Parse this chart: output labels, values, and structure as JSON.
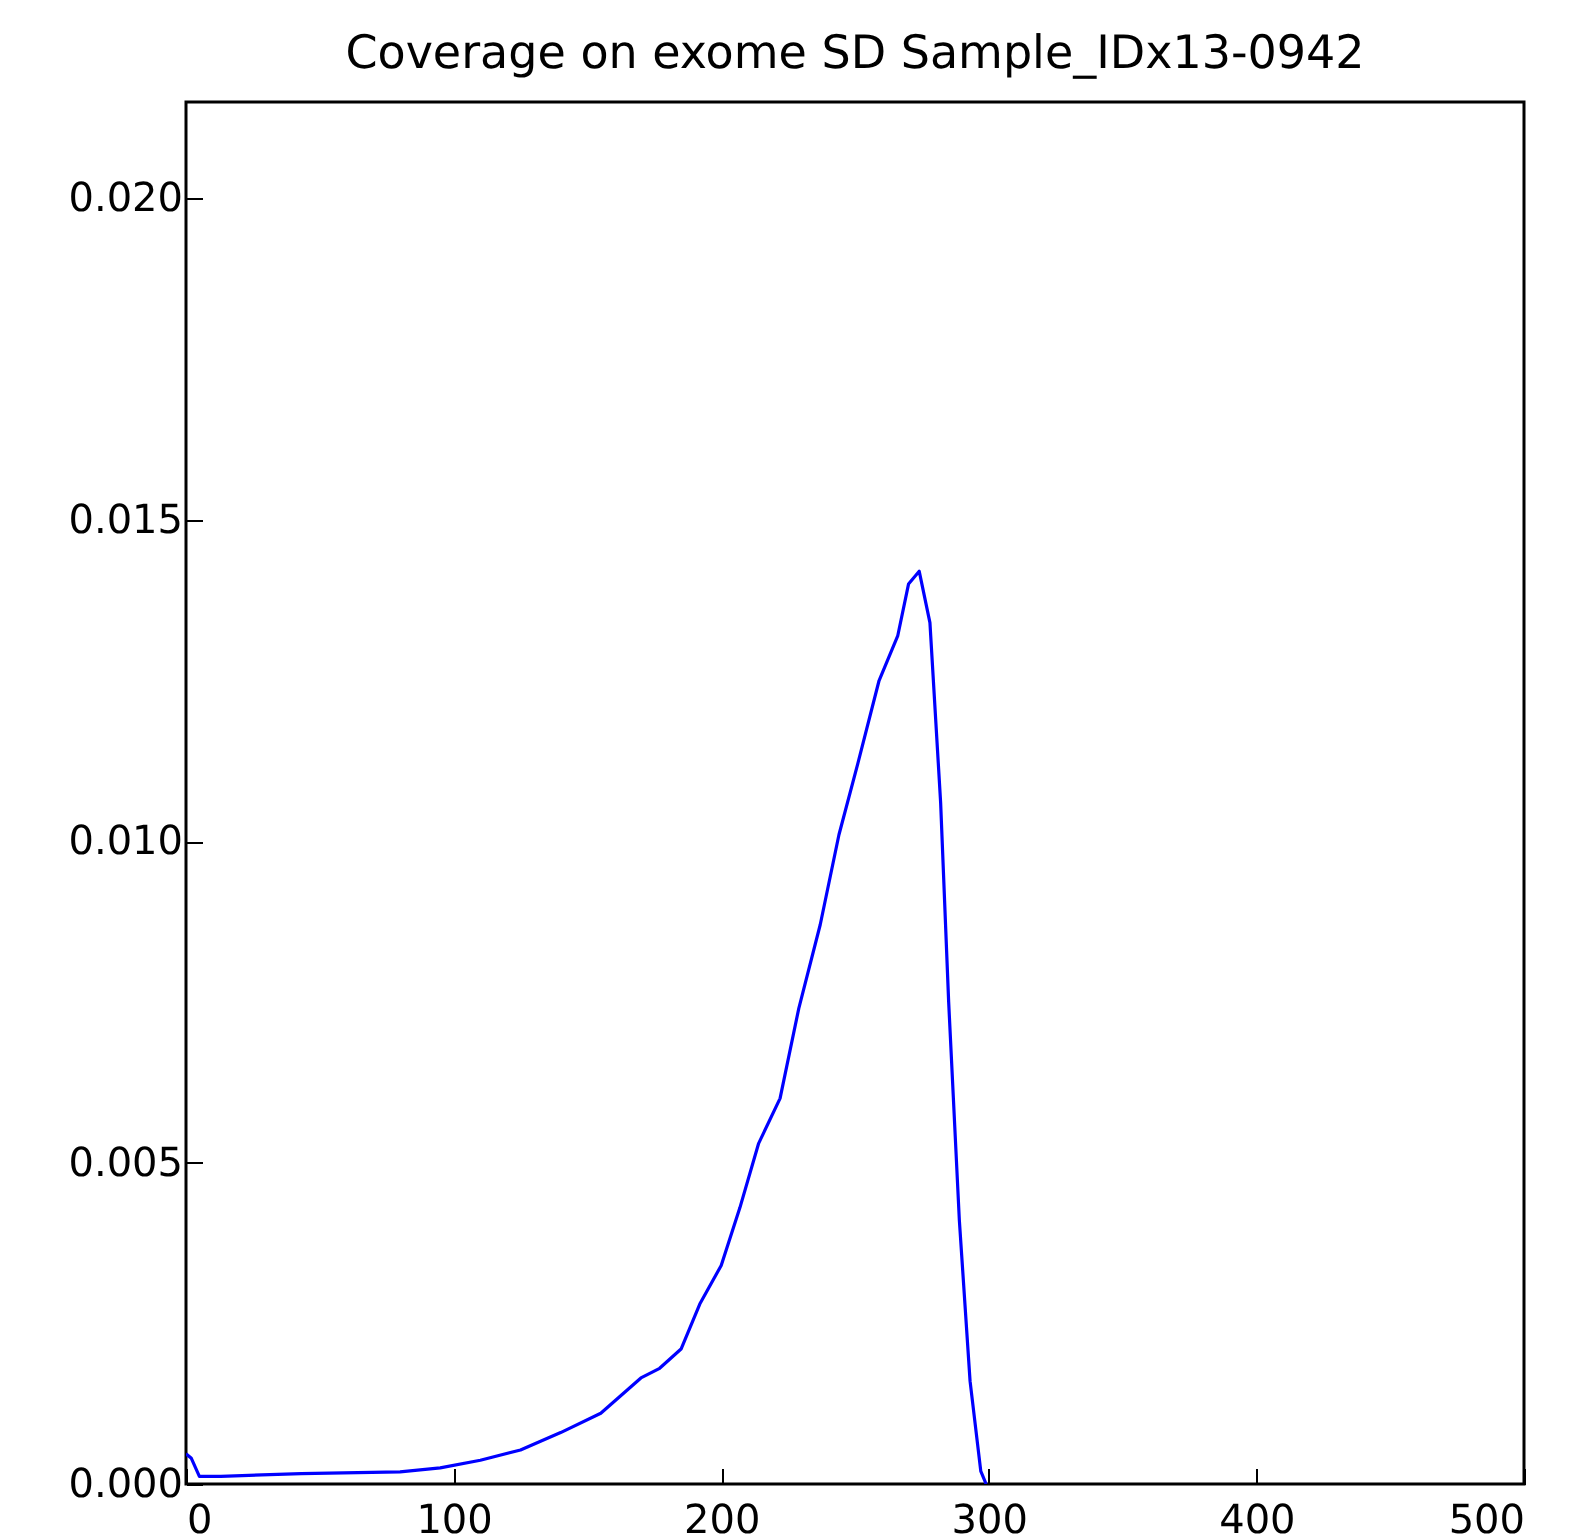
{
  "chart_data": {
    "type": "line",
    "title": "Coverage on exome SD Sample_IDx13-0942",
    "x": [
      0,
      2,
      5,
      13,
      43,
      80,
      95,
      110,
      125,
      140,
      155,
      170,
      177,
      185,
      192,
      200,
      207,
      214,
      222,
      229,
      237,
      244,
      251,
      259,
      266,
      270,
      274,
      275,
      278,
      282,
      285,
      289,
      293,
      297,
      299
    ],
    "series": [
      {
        "color": "#0000ff",
        "values": [
          0.00047,
          0.0004,
          0.00012,
          0.00012,
          0.00016,
          0.00019,
          0.00025,
          0.00037,
          0.00053,
          0.0008,
          0.0011,
          0.00165,
          0.0018,
          0.0021,
          0.0028,
          0.0034,
          0.0043,
          0.0053,
          0.006,
          0.0074,
          0.0087,
          0.0101,
          0.0112,
          0.0125,
          0.0132,
          0.014,
          0.0142,
          0.014,
          0.0134,
          0.0106,
          0.0075,
          0.0041,
          0.0016,
          0.0002,
          0
        ]
      }
    ],
    "xlim": [
      0,
      500
    ],
    "xticks": [
      0,
      100,
      200,
      300,
      400,
      500
    ],
    "ylim": [
      0,
      0.0215
    ],
    "yticks": [
      {
        "value": 0,
        "label": "0.000"
      },
      {
        "value": 0.005,
        "label": "0.005"
      },
      {
        "value": 0.01,
        "label": "0.010"
      },
      {
        "value": 0.015,
        "label": "0.015"
      },
      {
        "value": 0.02,
        "label": "0.020"
      }
    ],
    "grid": false
  }
}
